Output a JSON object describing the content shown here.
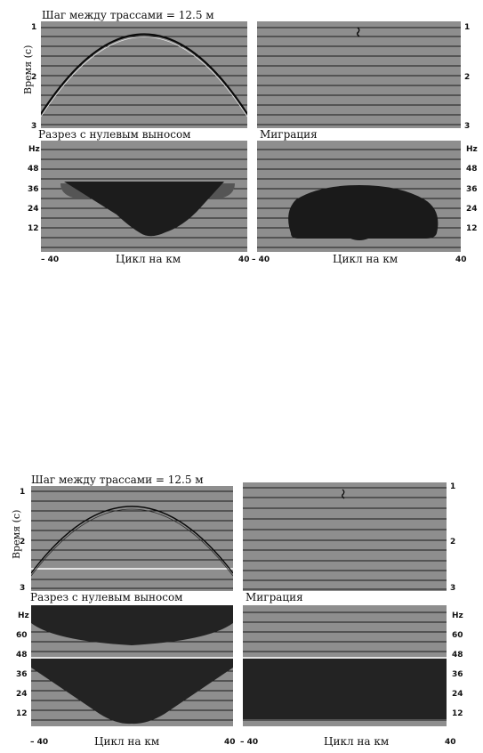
{
  "figures": [
    {
      "id": "top",
      "spacing_label": "Шаг между трассами = 12.5 м",
      "time_axis_label": "Время (с)",
      "time_ticks": [
        "1",
        "2",
        "3"
      ],
      "zero_offset_label": "Разрез с нулевым выносом",
      "migration_label": "Миграция",
      "freq_unit": "Hz",
      "freq_ticks": [
        "48",
        "36",
        "24",
        "12"
      ],
      "wavenumber_label": "Цикл на км",
      "k_min": "– 40",
      "k_max": "40"
    },
    {
      "id": "bottom",
      "spacing_label": "Шаг между трассами = 12.5 м",
      "time_axis_label": "Время (с)",
      "time_ticks": [
        "1",
        "2",
        "3"
      ],
      "zero_offset_label": "Разрез с нулевым выносом",
      "migration_label": "Миграция",
      "freq_unit": "Hz",
      "freq_ticks": [
        "60",
        "48",
        "36",
        "24",
        "12"
      ],
      "wavenumber_label": "Цикл на км",
      "k_min": "– 40",
      "k_max": "40"
    }
  ]
}
